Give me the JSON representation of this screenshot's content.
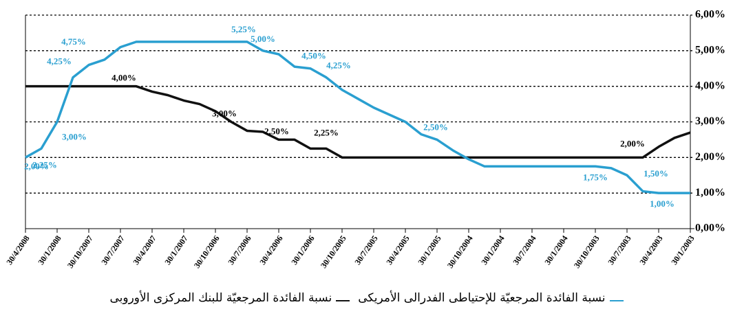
{
  "chart_data": {
    "type": "line",
    "categories": [
      "30/4/2008",
      null,
      "30/1/2008",
      null,
      "30/10/2007",
      null,
      "30/7/2007",
      null,
      "30/4/2007",
      null,
      "30/1/2007",
      null,
      "30/10/2006",
      null,
      "30/7/2006",
      null,
      "30/4/2006",
      null,
      "30/1/2006",
      null,
      "30/10/2005",
      null,
      "30/7/2005",
      null,
      "30/4/2005",
      null,
      "30/1/2005",
      null,
      "30/10/2004",
      null,
      "30/1/2004",
      null,
      "30/7/2004",
      null,
      "30/1/2004",
      null,
      "30/10/2003",
      null,
      "30/7/2003",
      null,
      "30/4/2003",
      null,
      "30/1/2003"
    ],
    "series": [
      {
        "name": "نسبة الفائدة المرجعيّة للبنك المركزى الأوروبى",
        "color": "#111111",
        "values": [
          4.0,
          4.0,
          4.0,
          4.0,
          4.0,
          4.0,
          4.0,
          4.0,
          3.85,
          3.75,
          3.6,
          3.5,
          3.3,
          3.0,
          2.75,
          2.72,
          2.5,
          2.5,
          2.25,
          2.25,
          2.0,
          2.0,
          2.0,
          2.0,
          2.0,
          2.0,
          2.0,
          2.0,
          2.0,
          2.0,
          2.0,
          2.0,
          2.0,
          2.0,
          2.0,
          2.0,
          2.0,
          2.0,
          2.0,
          2.0,
          2.3,
          2.55,
          2.7
        ],
        "value_labels": [
          null,
          null,
          null,
          null,
          null,
          null,
          null,
          "4,00%",
          null,
          null,
          null,
          null,
          null,
          "3,00%",
          null,
          null,
          "2,50%",
          null,
          null,
          "2,25%",
          null,
          null,
          null,
          null,
          null,
          null,
          null,
          null,
          null,
          null,
          null,
          null,
          null,
          null,
          null,
          null,
          null,
          null,
          null,
          "2,00%",
          null,
          null,
          null
        ]
      },
      {
        "name": "نسبة الفائدة المرجعيّة للإحتياطى الفدرالى الأمريكى",
        "color": "#2a9fd0",
        "values": [
          2.0,
          2.25,
          3.0,
          4.25,
          4.6,
          4.75,
          5.1,
          5.25,
          5.25,
          5.25,
          5.25,
          5.25,
          5.25,
          5.25,
          5.25,
          5.0,
          4.9,
          4.55,
          4.5,
          4.25,
          3.9,
          3.65,
          3.4,
          3.2,
          3.0,
          2.65,
          2.5,
          2.2,
          1.95,
          1.75,
          1.75,
          1.75,
          1.75,
          1.75,
          1.75,
          1.75,
          1.75,
          1.7,
          1.5,
          1.05,
          1.0,
          1.0,
          1.0
        ],
        "value_labels": [
          "2,00%",
          "2,25%",
          "3,00%",
          "4,25%",
          null,
          "4,75%",
          null,
          null,
          null,
          null,
          null,
          null,
          null,
          null,
          "5,25%",
          "5,00%",
          null,
          null,
          "4,50%",
          "4,25%",
          null,
          null,
          null,
          null,
          null,
          null,
          "2,50%",
          null,
          null,
          null,
          null,
          null,
          null,
          null,
          null,
          null,
          "1,75%",
          null,
          "1,50%",
          null,
          "1,00%",
          null,
          null
        ]
      }
    ],
    "ylim": [
      0,
      6
    ],
    "yticks": [
      {
        "value": 0,
        "label": "0,00%"
      },
      {
        "value": 1,
        "label": "1,00%"
      },
      {
        "value": 2,
        "label": "2,00%"
      },
      {
        "value": 3,
        "label": "3,00%"
      },
      {
        "value": 4,
        "label": "4,00%"
      },
      {
        "value": 5,
        "label": "5,00%"
      },
      {
        "value": 6,
        "label": "6,00%"
      }
    ],
    "grid": true
  }
}
